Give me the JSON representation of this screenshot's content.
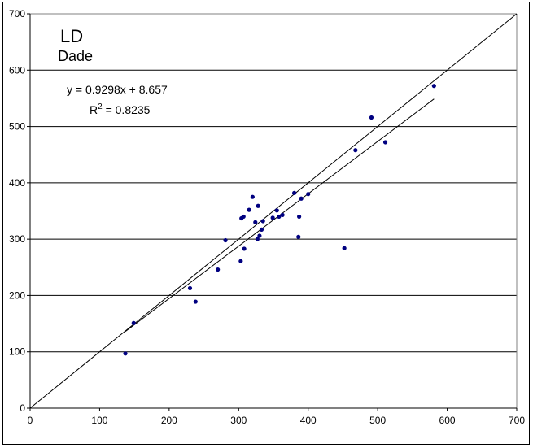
{
  "chart_data": {
    "type": "scatter",
    "title": "LD",
    "subtitle": "Dade",
    "xlim": [
      0,
      700
    ],
    "ylim": [
      0,
      700
    ],
    "x_ticks": [
      0,
      100,
      200,
      300,
      400,
      500,
      600,
      700
    ],
    "y_ticks": [
      0,
      100,
      200,
      300,
      400,
      500,
      600,
      700
    ],
    "grid": "horizontal",
    "equation": "y = 0.9298x + 8.657",
    "r2_label": "R",
    "r2_exp": "2",
    "r2_value": " = 0.8235",
    "trendline": {
      "slope": 0.9298,
      "intercept": 8.657,
      "x_range": [
        137,
        581
      ]
    },
    "identity_line": {
      "from": [
        0,
        0
      ],
      "to": [
        700,
        700
      ]
    },
    "marker_color": "#000080",
    "points": [
      [
        137,
        97
      ],
      [
        149,
        151
      ],
      [
        230,
        213
      ],
      [
        238,
        189
      ],
      [
        270,
        246
      ],
      [
        281,
        298
      ],
      [
        303,
        261
      ],
      [
        304,
        337
      ],
      [
        307,
        340
      ],
      [
        308,
        283
      ],
      [
        315,
        352
      ],
      [
        320,
        375
      ],
      [
        324,
        330
      ],
      [
        327,
        300
      ],
      [
        328,
        359
      ],
      [
        330,
        306
      ],
      [
        333,
        317
      ],
      [
        335,
        332
      ],
      [
        349,
        338
      ],
      [
        355,
        351
      ],
      [
        358,
        340
      ],
      [
        363,
        343
      ],
      [
        380,
        382
      ],
      [
        386,
        304
      ],
      [
        387,
        340
      ],
      [
        390,
        372
      ],
      [
        400,
        380
      ],
      [
        452,
        284
      ],
      [
        468,
        458
      ],
      [
        491,
        516
      ],
      [
        511,
        472
      ],
      [
        581,
        572
      ]
    ]
  }
}
